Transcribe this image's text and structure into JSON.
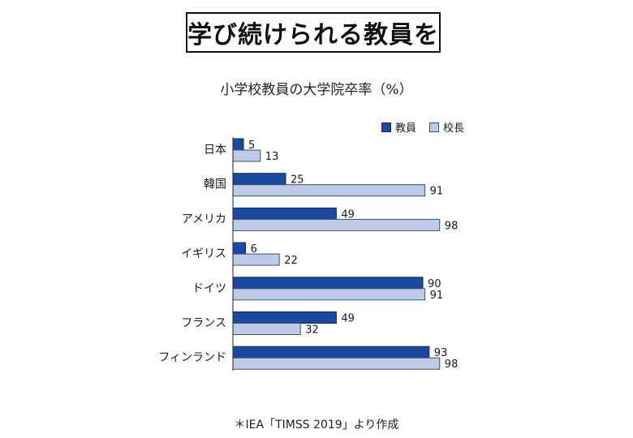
{
  "title": "学び続けられる教員を",
  "chart_data": {
    "type": "bar",
    "orientation": "horizontal",
    "title": "小学校教員の大学院卒率（%）",
    "categories": [
      "日本",
      "韓国",
      "アメリカ",
      "イギリス",
      "ドイツ",
      "フランス",
      "フィンランド"
    ],
    "series": [
      {
        "name": "教員",
        "values": [
          5,
          25,
          49,
          6,
          90,
          49,
          93
        ],
        "color": "#1a4aa0"
      },
      {
        "name": "校長",
        "values": [
          13,
          91,
          98,
          22,
          91,
          32,
          98
        ],
        "color": "#bdcbe6"
      }
    ],
    "xlim": [
      0,
      100
    ],
    "legend_position": "top-right",
    "grid": false
  },
  "footnote": "＊IEA「TIMSS 2019」より作成"
}
